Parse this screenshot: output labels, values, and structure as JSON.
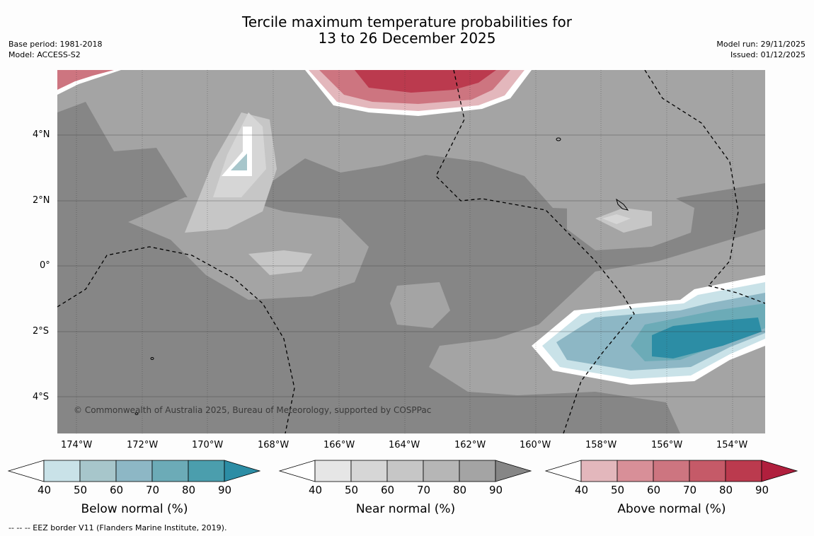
{
  "title": {
    "line1": "Tercile maximum temperature probabilities for",
    "line2": "13 to 26 December 2025"
  },
  "meta": {
    "base_period": "Base period: 1981-2018",
    "model": "Model: ACCESS-S2",
    "model_run": "Model run: 29/11/2025",
    "issued": "Issued: 01/12/2025"
  },
  "map": {
    "lon_labels": [
      "174°W",
      "172°W",
      "170°W",
      "168°W",
      "166°W",
      "164°W",
      "162°W",
      "160°W",
      "158°W",
      "156°W",
      "154°W"
    ],
    "lat_labels": [
      "4°N",
      "2°N",
      "0°",
      "2°S",
      "4°S"
    ],
    "copyright": "© Commonwealth of Australia 2025, Bureau of Meteorology, supported by COSPPac",
    "base_color": "#868686"
  },
  "colorbars": [
    {
      "label": "Below normal (%)",
      "ticks": [
        "40",
        "50",
        "60",
        "70",
        "80",
        "90"
      ],
      "colors": [
        "#c9e2e8",
        "#a7c6cb",
        "#8db7c5",
        "#6cabb7",
        "#4b9ead",
        "#2c8da5"
      ]
    },
    {
      "label": "Near normal (%)",
      "ticks": [
        "40",
        "50",
        "60",
        "70",
        "80",
        "90"
      ],
      "colors": [
        "#e6e6e6",
        "#d6d6d6",
        "#c6c6c6",
        "#b6b6b6",
        "#a4a4a4",
        "#868686"
      ]
    },
    {
      "label": "Above normal (%)",
      "ticks": [
        "40",
        "50",
        "60",
        "70",
        "80",
        "90"
      ],
      "colors": [
        "#e3b7bc",
        "#d88f98",
        "#cd7580",
        "#c55a68",
        "#bb3a4e",
        "#b01f3d"
      ]
    }
  ],
  "footer": "--  --  -- EEZ border V11 (Flanders Marine Institute, 2019)."
}
